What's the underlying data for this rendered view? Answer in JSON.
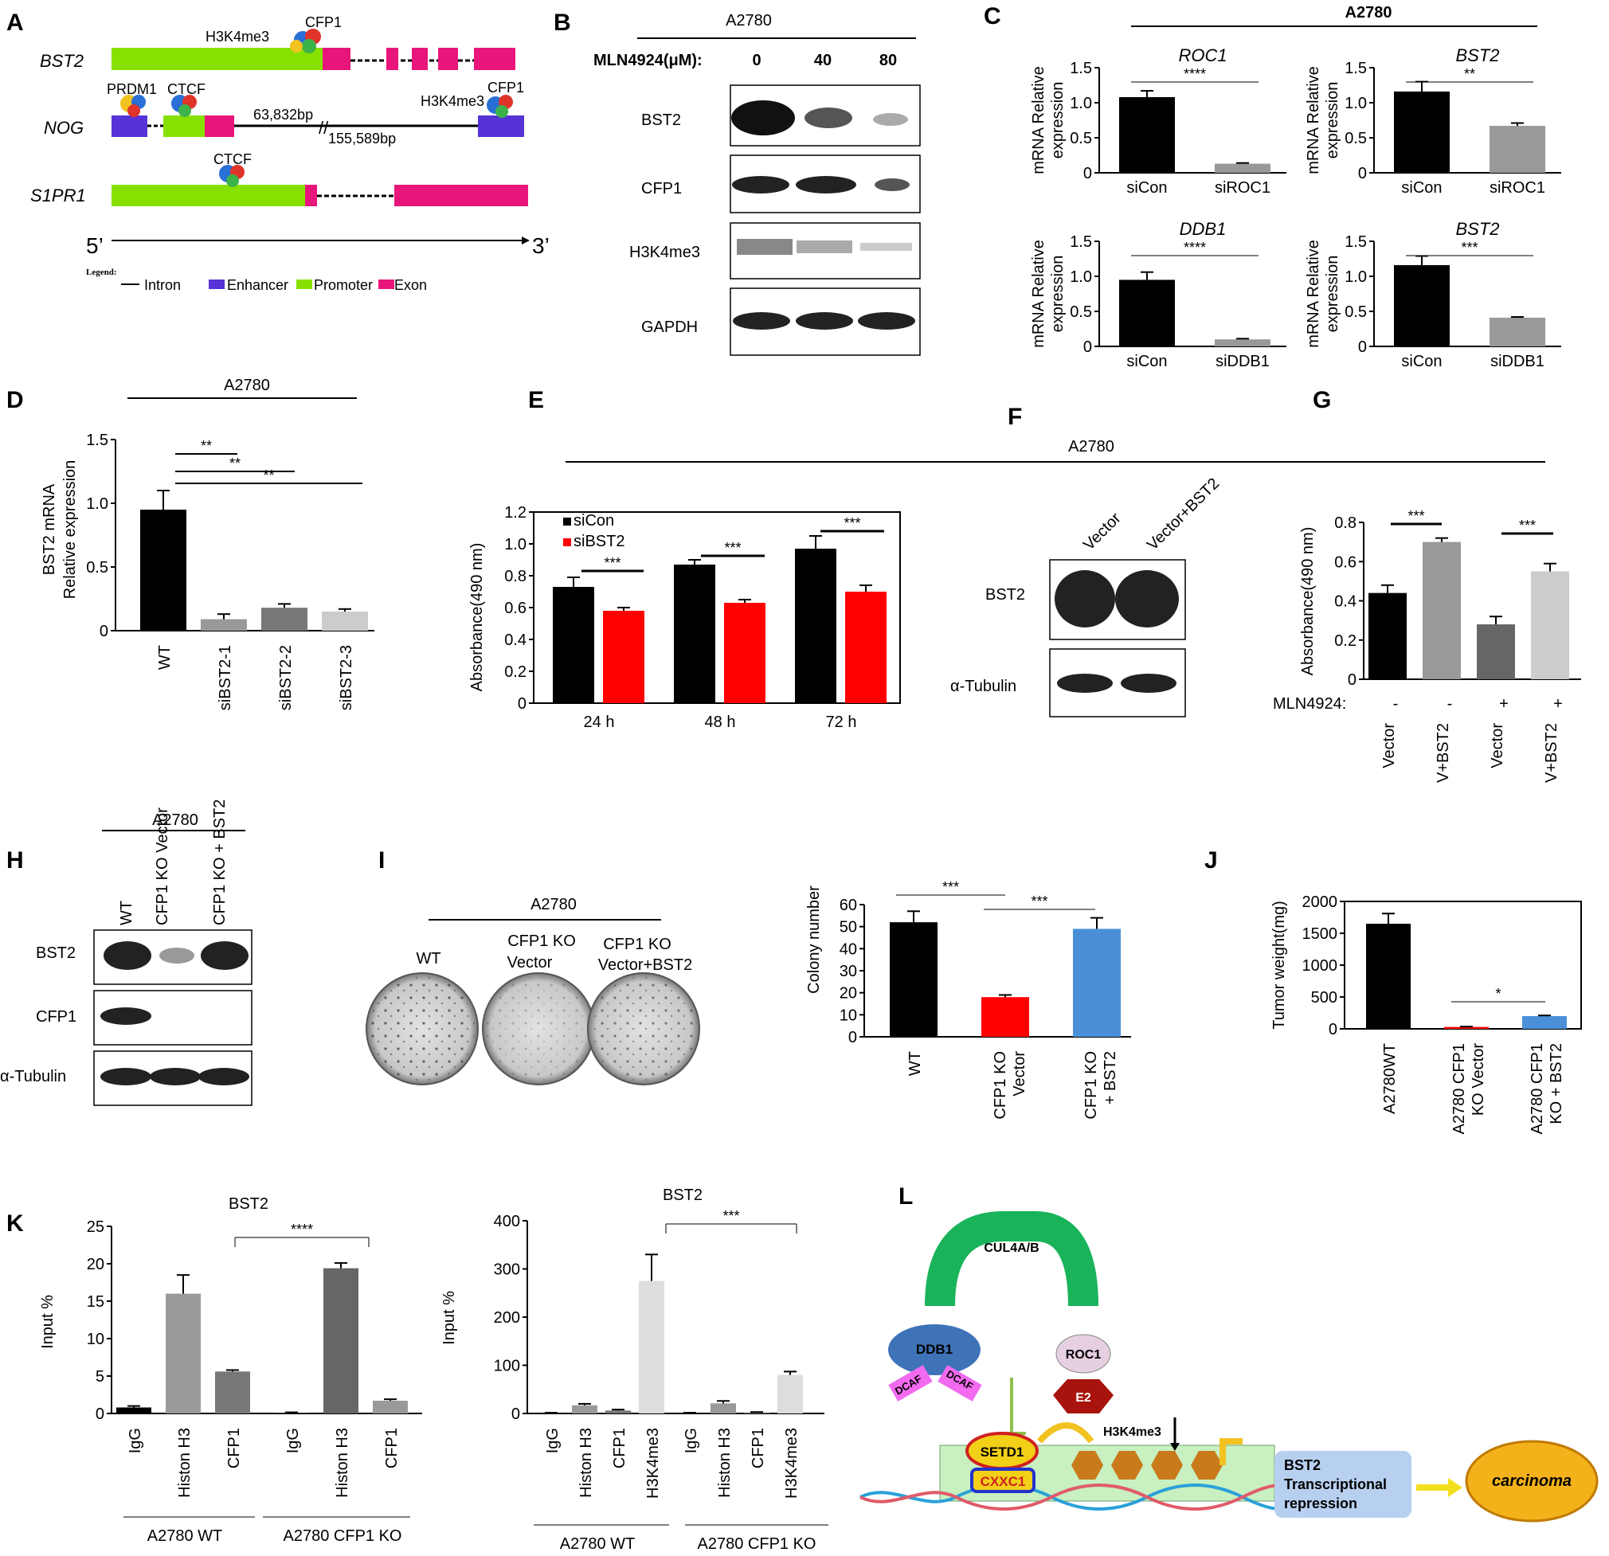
{
  "cell_line": "A2780",
  "panels": {
    "A": {
      "letter": "A",
      "genes": [
        "BST2",
        "NOG",
        "S1PR1"
      ],
      "marks": {
        "h3k4me3": "H3K4me3",
        "cfp1": "CFP1",
        "prdm1": "PRDM1",
        "ctcf": "CTCF"
      },
      "distances": [
        "63,832bp",
        "155,589bp"
      ],
      "axis": {
        "five": "5’",
        "three": "3’"
      },
      "legend": {
        "title": "Legend:",
        "intron": "Intron",
        "enhancer": "Enhancer",
        "promoter": "Promoter",
        "exon": "Exon"
      },
      "colors": {
        "promoter": "#88e000",
        "exon": "#e8157a",
        "enhancer": "#5533d6"
      }
    },
    "B": {
      "letter": "B",
      "treatment": "MLN4924(μM):",
      "doses": [
        "0",
        "40",
        "80"
      ],
      "blots": [
        "BST2",
        "CFP1",
        "H3K4me3",
        "GAPDH"
      ]
    },
    "C": {
      "letter": "C",
      "ylabel_1": "mRNA Relative",
      "ylabel_2": "expression",
      "subplots": [
        {
          "title": "ROC1",
          "sig": "****",
          "x": [
            "siCon",
            "siROC1"
          ],
          "values": [
            1.08,
            0.13
          ],
          "err": [
            0.09,
            0.01
          ]
        },
        {
          "title": "BST2",
          "sig": "**",
          "x": [
            "siCon",
            "siROC1"
          ],
          "values": [
            1.16,
            0.67
          ],
          "err": [
            0.14,
            0.04
          ]
        },
        {
          "title": "DDB1",
          "sig": "****",
          "x": [
            "siCon",
            "siDDB1"
          ],
          "values": [
            0.95,
            0.1
          ],
          "err": [
            0.11,
            0.01
          ]
        },
        {
          "title": "BST2",
          "sig": "***",
          "x": [
            "siCon",
            "siDDB1"
          ],
          "values": [
            1.16,
            0.41
          ],
          "err": [
            0.13,
            0.01
          ]
        }
      ],
      "yticks": [
        "0",
        "0.5",
        "1.0",
        "1.5"
      ]
    },
    "D": {
      "letter": "D",
      "ylabel_1": "BST2 mRNA",
      "ylabel_2": "Relative expression",
      "yticks": [
        "0",
        "0.5",
        "1.0",
        "1.5"
      ],
      "sigs": [
        "**",
        "**",
        "**"
      ]
    },
    "E": {
      "letter": "E",
      "ylabel": "Absorbance(490 nm)",
      "yticks": [
        "0",
        "0.2",
        "0.4",
        "0.6",
        "0.8",
        "1.0",
        "1.2"
      ],
      "legend": [
        "siCon",
        "siBST2"
      ],
      "sigs": [
        "***",
        "***",
        "***"
      ]
    },
    "F": {
      "letter": "F",
      "lanes": [
        "Vector",
        "Vector+BST2"
      ],
      "blots": [
        "BST2",
        "α-Tubulin"
      ]
    },
    "G": {
      "letter": "G",
      "ylabel": "Absorbance(490 nm)",
      "yticks": [
        "0",
        "0.2",
        "0.4",
        "0.6",
        "0.8"
      ],
      "treatment": "MLN4924:",
      "signs": [
        "-",
        "-",
        "+",
        "+"
      ],
      "sigs": [
        "***",
        "***"
      ]
    },
    "H": {
      "letter": "H",
      "lanes": [
        "WT",
        "CFP1 KO Vector",
        "CFP1 KO + BST2"
      ],
      "blots": [
        "BST2",
        "CFP1",
        "α-Tubulin"
      ]
    },
    "I": {
      "letter": "I",
      "dishes": [
        "WT",
        "CFP1 KO",
        "Vector",
        "CFP1 KO",
        "Vector+BST2"
      ],
      "ylabel": "Colony number",
      "yticks": [
        "0",
        "10",
        "20",
        "30",
        "40",
        "50",
        "60"
      ],
      "xlabels": [
        "WT",
        "CFP1 KO",
        "Vector",
        "CFP1 KO",
        "+ BST2"
      ],
      "sigs": [
        "***",
        "***"
      ]
    },
    "J": {
      "letter": "J",
      "ylabel": "Tumor weight(mg)",
      "yticks": [
        "0",
        "500",
        "1000",
        "1500",
        "2000"
      ],
      "xlabels": [
        "A2780WT",
        "A2780 CFP1",
        "KO Vector",
        "A2780 CFP1",
        "KO + BST2"
      ],
      "sig": "*"
    },
    "K": {
      "letter": "K",
      "title": "BST2",
      "ylabel": "Input %",
      "left_yticks": [
        "0",
        "5",
        "10",
        "15",
        "20",
        "25"
      ],
      "right_yticks": [
        "0",
        "100",
        "200",
        "300",
        "400"
      ],
      "left_x": [
        "IgG",
        "Histon H3",
        "CFP1",
        "IgG",
        "Histon H3",
        "CFP1"
      ],
      "right_x": [
        "IgG",
        "Histon H3",
        "CFP1",
        "H3K4me3",
        "IgG",
        "Histon H3",
        "CFP1",
        "H3K4me3"
      ],
      "groups": [
        "A2780 WT",
        "A2780 CFP1 KO"
      ],
      "sig_left": "****",
      "sig_right": "***"
    },
    "L": {
      "letter": "L",
      "labels": {
        "cul": "CUL4A/B",
        "ddb1": "DDB1",
        "roc1": "ROC1",
        "e2": "E2",
        "dcaf": "DCAF",
        "setd1": "SETD1",
        "cxxc1": "CXXC1",
        "h3k4me3": "H3K4me3",
        "repress_1": "BST2",
        "repress_2": "Transcriptional",
        "repress_3": "repression",
        "carcinoma": "carcinoma"
      }
    }
  },
  "chart_data": [
    {
      "type": "bar",
      "panel": "C",
      "title": "ROC1",
      "categories": [
        "siCon",
        "siROC1"
      ],
      "values": [
        1.08,
        0.13
      ],
      "ylabel": "mRNA Relative expression",
      "ylim": [
        0,
        1.5
      ]
    },
    {
      "type": "bar",
      "panel": "C",
      "title": "BST2",
      "categories": [
        "siCon",
        "siROC1"
      ],
      "values": [
        1.16,
        0.67
      ],
      "ylabel": "mRNA Relative expression",
      "ylim": [
        0,
        1.5
      ]
    },
    {
      "type": "bar",
      "panel": "C",
      "title": "DDB1",
      "categories": [
        "siCon",
        "siDDB1"
      ],
      "values": [
        0.95,
        0.1
      ],
      "ylabel": "mRNA Relative expression",
      "ylim": [
        0,
        1.5
      ]
    },
    {
      "type": "bar",
      "panel": "C",
      "title": "BST2",
      "categories": [
        "siCon",
        "siDDB1"
      ],
      "values": [
        1.16,
        0.41
      ],
      "ylabel": "mRNA Relative expression",
      "ylim": [
        0,
        1.5
      ]
    },
    {
      "type": "bar",
      "panel": "D",
      "categories": [
        "WT",
        "siBST2-1",
        "siBST2-2",
        "siBST2-3"
      ],
      "values": [
        0.95,
        0.09,
        0.18,
        0.15
      ],
      "err": [
        0.15,
        0.04,
        0.03,
        0.02
      ],
      "ylabel": "BST2 mRNA Relative expression",
      "ylim": [
        0,
        1.5
      ]
    },
    {
      "type": "bar",
      "panel": "E",
      "categories": [
        "24 h",
        "48 h",
        "72 h"
      ],
      "series": [
        {
          "name": "siCon",
          "values": [
            0.73,
            0.87,
            0.97
          ],
          "err": [
            0.06,
            0.03,
            0.08
          ]
        },
        {
          "name": "siBST2",
          "values": [
            0.58,
            0.63,
            0.7
          ],
          "err": [
            0.02,
            0.02,
            0.04
          ]
        }
      ],
      "ylabel": "Absorbance(490 nm)",
      "ylim": [
        0,
        1.2
      ]
    },
    {
      "type": "bar",
      "panel": "G",
      "categories": [
        "Vector",
        "V+BST2",
        "Vector",
        "V+BST2"
      ],
      "values": [
        0.44,
        0.7,
        0.28,
        0.55
      ],
      "err": [
        0.04,
        0.02,
        0.04,
        0.04
      ],
      "ylabel": "Absorbance(490 nm)",
      "ylim": [
        0,
        0.8
      ]
    },
    {
      "type": "bar",
      "panel": "I",
      "categories": [
        "WT",
        "CFP1 KO Vector",
        "CFP1 KO + BST2"
      ],
      "values": [
        52,
        18,
        49
      ],
      "err": [
        5,
        1,
        5
      ],
      "ylabel": "Colony number",
      "ylim": [
        0,
        60
      ]
    },
    {
      "type": "bar",
      "panel": "J",
      "categories": [
        "A2780WT",
        "A2780 CFP1 KO Vector",
        "A2780 CFP1 KO + BST2"
      ],
      "values": [
        1650,
        30,
        200
      ],
      "err": [
        160,
        5,
        10
      ],
      "ylabel": "Tumor weight(mg)",
      "ylim": [
        0,
        2000
      ]
    },
    {
      "type": "bar",
      "panel": "K",
      "title": "BST2",
      "categories": [
        "IgG",
        "Histon H3",
        "CFP1",
        "IgG",
        "Histon H3",
        "CFP1"
      ],
      "values": [
        0.8,
        16,
        5.6,
        0.1,
        19.4,
        1.7
      ],
      "err": [
        0.2,
        2.5,
        0.2,
        0.05,
        0.7,
        0.2
      ],
      "ylabel": "Input %",
      "ylim": [
        0,
        25
      ]
    },
    {
      "type": "bar",
      "panel": "K",
      "title": "BST2",
      "categories": [
        "IgG",
        "Histon H3",
        "CFP1",
        "H3K4me3",
        "IgG",
        "Histon H3",
        "CFP1",
        "H3K4me3"
      ],
      "values": [
        1,
        17,
        6,
        275,
        1,
        21,
        2,
        80
      ],
      "err": [
        0.5,
        3,
        2,
        55,
        0.5,
        5,
        1,
        7
      ],
      "ylabel": "Input %",
      "ylim": [
        0,
        400
      ]
    }
  ]
}
